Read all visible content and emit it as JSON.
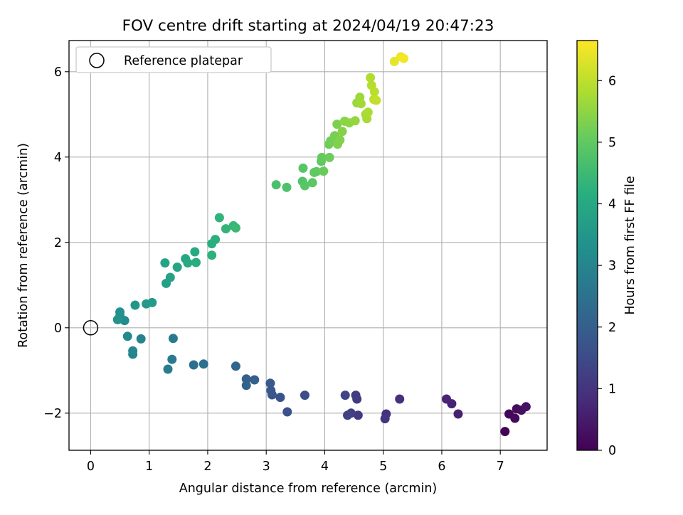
{
  "chart_data": {
    "type": "scatter",
    "title": "FOV centre drift starting at 2024/04/19 20:47:23",
    "xlabel": "Angular distance from reference (arcmin)",
    "ylabel": "Rotation from reference (arcmin)",
    "xlim": [
      -0.37,
      7.8
    ],
    "ylim": [
      -2.87,
      6.73
    ],
    "xticks": [
      "0",
      "1",
      "2",
      "3",
      "4",
      "5",
      "6",
      "7"
    ],
    "yticks": [
      "−2",
      "0",
      "2",
      "4",
      "6"
    ],
    "grid": true,
    "legend": {
      "position": "top-left",
      "entries": [
        "Reference platepar"
      ]
    },
    "reference_point": {
      "x": 0,
      "y": 0
    },
    "colorbar": {
      "label": "Hours from first FF file",
      "range": [
        0,
        6.65
      ],
      "ticks": [
        "0",
        "1",
        "2",
        "3",
        "4",
        "5",
        "6"
      ],
      "colormap": "viridis"
    },
    "points": [
      {
        "x": 7.08,
        "y": -2.43,
        "h": 0.05
      },
      {
        "x": 7.15,
        "y": -2.02,
        "h": 0.1
      },
      {
        "x": 7.25,
        "y": -2.12,
        "h": 0.15
      },
      {
        "x": 7.28,
        "y": -1.9,
        "h": 0.2
      },
      {
        "x": 7.36,
        "y": -1.93,
        "h": 0.25
      },
      {
        "x": 7.44,
        "y": -1.85,
        "h": 0.3
      },
      {
        "x": 6.28,
        "y": -2.02,
        "h": 0.6
      },
      {
        "x": 6.17,
        "y": -1.78,
        "h": 0.65
      },
      {
        "x": 6.08,
        "y": -1.67,
        "h": 0.7
      },
      {
        "x": 5.28,
        "y": -1.67,
        "h": 0.9
      },
      {
        "x": 5.05,
        "y": -2.02,
        "h": 0.95
      },
      {
        "x": 5.03,
        "y": -2.13,
        "h": 1.0
      },
      {
        "x": 4.57,
        "y": -2.05,
        "h": 1.1
      },
      {
        "x": 4.55,
        "y": -1.67,
        "h": 1.15
      },
      {
        "x": 4.53,
        "y": -1.58,
        "h": 1.2
      },
      {
        "x": 4.45,
        "y": -2.0,
        "h": 1.25
      },
      {
        "x": 4.39,
        "y": -2.05,
        "h": 1.3
      },
      {
        "x": 4.35,
        "y": -1.58,
        "h": 1.35
      },
      {
        "x": 3.66,
        "y": -1.58,
        "h": 1.55
      },
      {
        "x": 3.36,
        "y": -1.97,
        "h": 1.65
      },
      {
        "x": 3.24,
        "y": -1.63,
        "h": 1.7
      },
      {
        "x": 3.1,
        "y": -1.57,
        "h": 1.75
      },
      {
        "x": 3.08,
        "y": -1.47,
        "h": 1.8
      },
      {
        "x": 3.07,
        "y": -1.3,
        "h": 1.85
      },
      {
        "x": 2.8,
        "y": -1.22,
        "h": 2.0
      },
      {
        "x": 2.66,
        "y": -1.2,
        "h": 2.05
      },
      {
        "x": 2.66,
        "y": -1.35,
        "h": 2.1
      },
      {
        "x": 2.48,
        "y": -0.9,
        "h": 2.2
      },
      {
        "x": 1.93,
        "y": -0.85,
        "h": 2.4
      },
      {
        "x": 1.76,
        "y": -0.87,
        "h": 2.45
      },
      {
        "x": 1.41,
        "y": -0.25,
        "h": 2.65
      },
      {
        "x": 1.39,
        "y": -0.74,
        "h": 2.7
      },
      {
        "x": 1.32,
        "y": -0.97,
        "h": 2.75
      },
      {
        "x": 0.86,
        "y": -0.26,
        "h": 2.95
      },
      {
        "x": 0.72,
        "y": -0.62,
        "h": 3.0
      },
      {
        "x": 0.72,
        "y": -0.54,
        "h": 3.05
      },
      {
        "x": 0.63,
        "y": -0.2,
        "h": 3.1
      },
      {
        "x": 0.58,
        "y": 0.17,
        "h": 3.2
      },
      {
        "x": 0.48,
        "y": 0.2,
        "h": 3.25
      },
      {
        "x": 0.5,
        "y": 0.28,
        "h": 3.3
      },
      {
        "x": 0.5,
        "y": 0.37,
        "h": 3.35
      },
      {
        "x": 0.46,
        "y": 0.19,
        "h": 3.4
      },
      {
        "x": 0.76,
        "y": 0.53,
        "h": 3.5
      },
      {
        "x": 0.95,
        "y": 0.56,
        "h": 3.55
      },
      {
        "x": 1.05,
        "y": 0.59,
        "h": 3.6
      },
      {
        "x": 1.29,
        "y": 1.04,
        "h": 3.75
      },
      {
        "x": 1.36,
        "y": 1.18,
        "h": 3.8
      },
      {
        "x": 1.27,
        "y": 1.52,
        "h": 3.85
      },
      {
        "x": 1.48,
        "y": 1.42,
        "h": 3.9
      },
      {
        "x": 1.62,
        "y": 1.62,
        "h": 3.95
      },
      {
        "x": 1.66,
        "y": 1.52,
        "h": 4.0
      },
      {
        "x": 1.78,
        "y": 1.78,
        "h": 4.05
      },
      {
        "x": 1.8,
        "y": 1.53,
        "h": 4.1
      },
      {
        "x": 2.07,
        "y": 1.97,
        "h": 4.15
      },
      {
        "x": 2.13,
        "y": 2.07,
        "h": 4.2
      },
      {
        "x": 2.07,
        "y": 1.7,
        "h": 4.25
      },
      {
        "x": 2.2,
        "y": 2.58,
        "h": 4.3
      },
      {
        "x": 2.31,
        "y": 2.32,
        "h": 4.35
      },
      {
        "x": 2.44,
        "y": 2.39,
        "h": 4.4
      },
      {
        "x": 2.48,
        "y": 2.34,
        "h": 4.45
      },
      {
        "x": 3.17,
        "y": 3.35,
        "h": 4.7
      },
      {
        "x": 3.35,
        "y": 3.29,
        "h": 4.75
      },
      {
        "x": 3.62,
        "y": 3.43,
        "h": 4.8
      },
      {
        "x": 3.63,
        "y": 3.74,
        "h": 4.85
      },
      {
        "x": 3.66,
        "y": 3.33,
        "h": 4.88
      },
      {
        "x": 3.79,
        "y": 3.4,
        "h": 4.92
      },
      {
        "x": 3.82,
        "y": 3.64,
        "h": 4.95
      },
      {
        "x": 3.86,
        "y": 3.66,
        "h": 4.98
      },
      {
        "x": 3.94,
        "y": 3.9,
        "h": 5.0
      },
      {
        "x": 3.95,
        "y": 3.99,
        "h": 5.05
      },
      {
        "x": 3.98,
        "y": 3.67,
        "h": 5.08
      },
      {
        "x": 4.08,
        "y": 3.99,
        "h": 5.1
      },
      {
        "x": 4.07,
        "y": 4.3,
        "h": 5.15
      },
      {
        "x": 4.1,
        "y": 4.38,
        "h": 5.2
      },
      {
        "x": 4.17,
        "y": 4.5,
        "h": 5.25
      },
      {
        "x": 4.21,
        "y": 4.77,
        "h": 5.3
      },
      {
        "x": 4.22,
        "y": 4.3,
        "h": 5.32
      },
      {
        "x": 4.26,
        "y": 4.4,
        "h": 5.35
      },
      {
        "x": 4.3,
        "y": 4.6,
        "h": 5.4
      },
      {
        "x": 4.34,
        "y": 4.84,
        "h": 5.45
      },
      {
        "x": 4.42,
        "y": 4.8,
        "h": 5.5
      },
      {
        "x": 4.52,
        "y": 4.85,
        "h": 5.55
      },
      {
        "x": 4.55,
        "y": 5.27,
        "h": 5.6
      },
      {
        "x": 4.6,
        "y": 5.4,
        "h": 5.65
      },
      {
        "x": 4.62,
        "y": 5.25,
        "h": 5.7
      },
      {
        "x": 4.7,
        "y": 5.0,
        "h": 5.72
      },
      {
        "x": 4.72,
        "y": 4.9,
        "h": 5.75
      },
      {
        "x": 4.74,
        "y": 5.05,
        "h": 5.8
      },
      {
        "x": 4.78,
        "y": 5.86,
        "h": 5.85
      },
      {
        "x": 4.8,
        "y": 5.68,
        "h": 5.9
      },
      {
        "x": 4.85,
        "y": 5.53,
        "h": 5.95
      },
      {
        "x": 4.84,
        "y": 5.35,
        "h": 6.0
      },
      {
        "x": 4.88,
        "y": 5.33,
        "h": 6.05
      },
      {
        "x": 5.19,
        "y": 6.24,
        "h": 6.4
      },
      {
        "x": 5.3,
        "y": 6.35,
        "h": 6.5
      },
      {
        "x": 5.35,
        "y": 6.31,
        "h": 6.55
      }
    ]
  }
}
